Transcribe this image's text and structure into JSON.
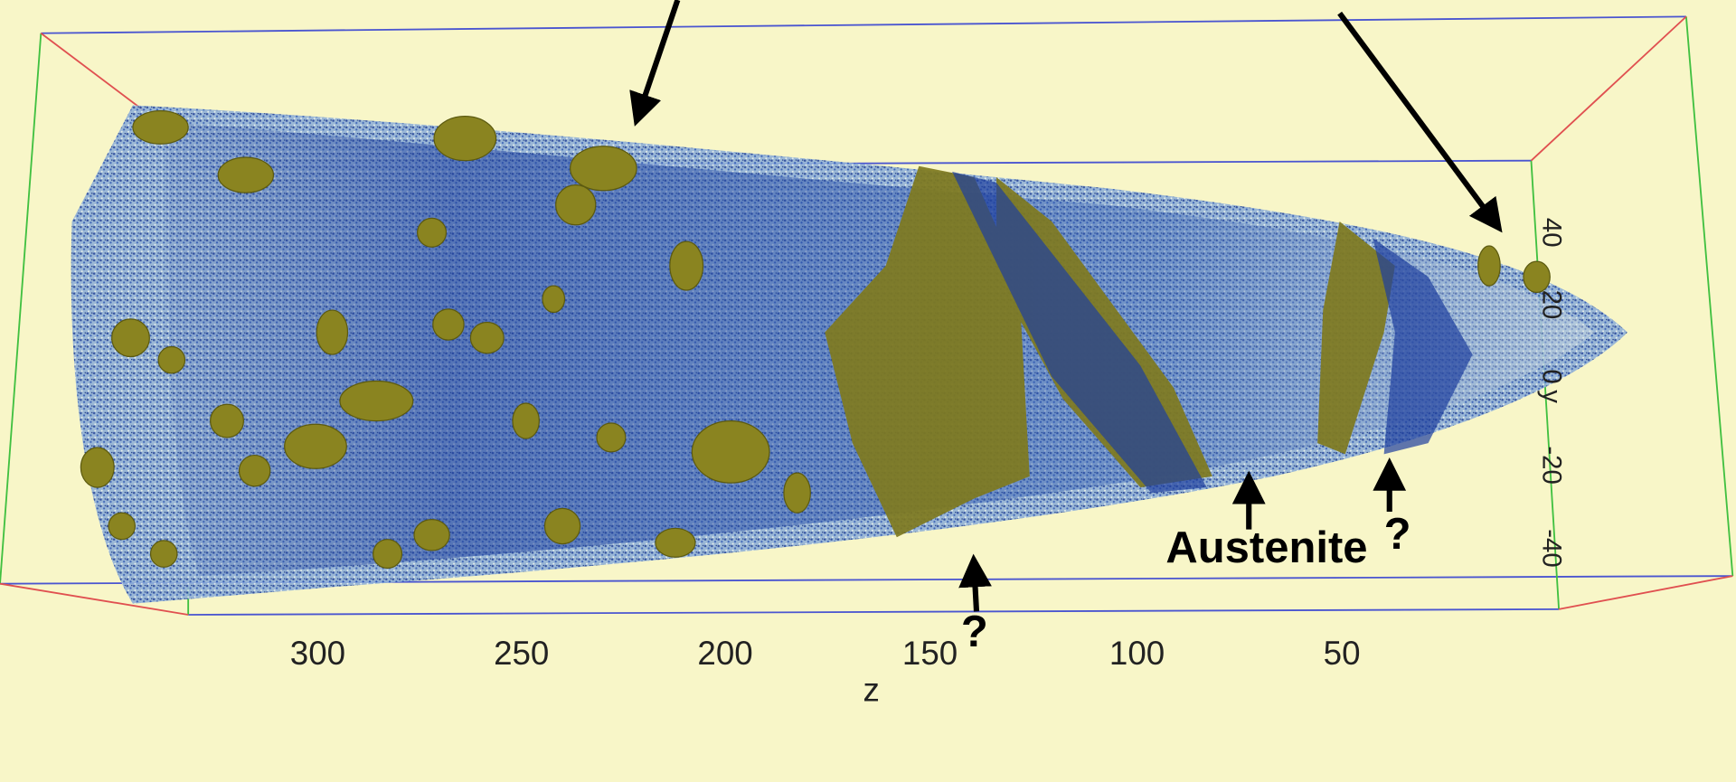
{
  "axes": {
    "z": {
      "label": "z",
      "ticks": [
        "300",
        "250",
        "200",
        "150",
        "100",
        "50"
      ]
    },
    "y": {
      "label": "y",
      "ticks": [
        "40",
        "20",
        "0",
        "-20",
        "-40"
      ]
    }
  },
  "annotations": [
    "Austenite",
    "?",
    "?"
  ]
}
